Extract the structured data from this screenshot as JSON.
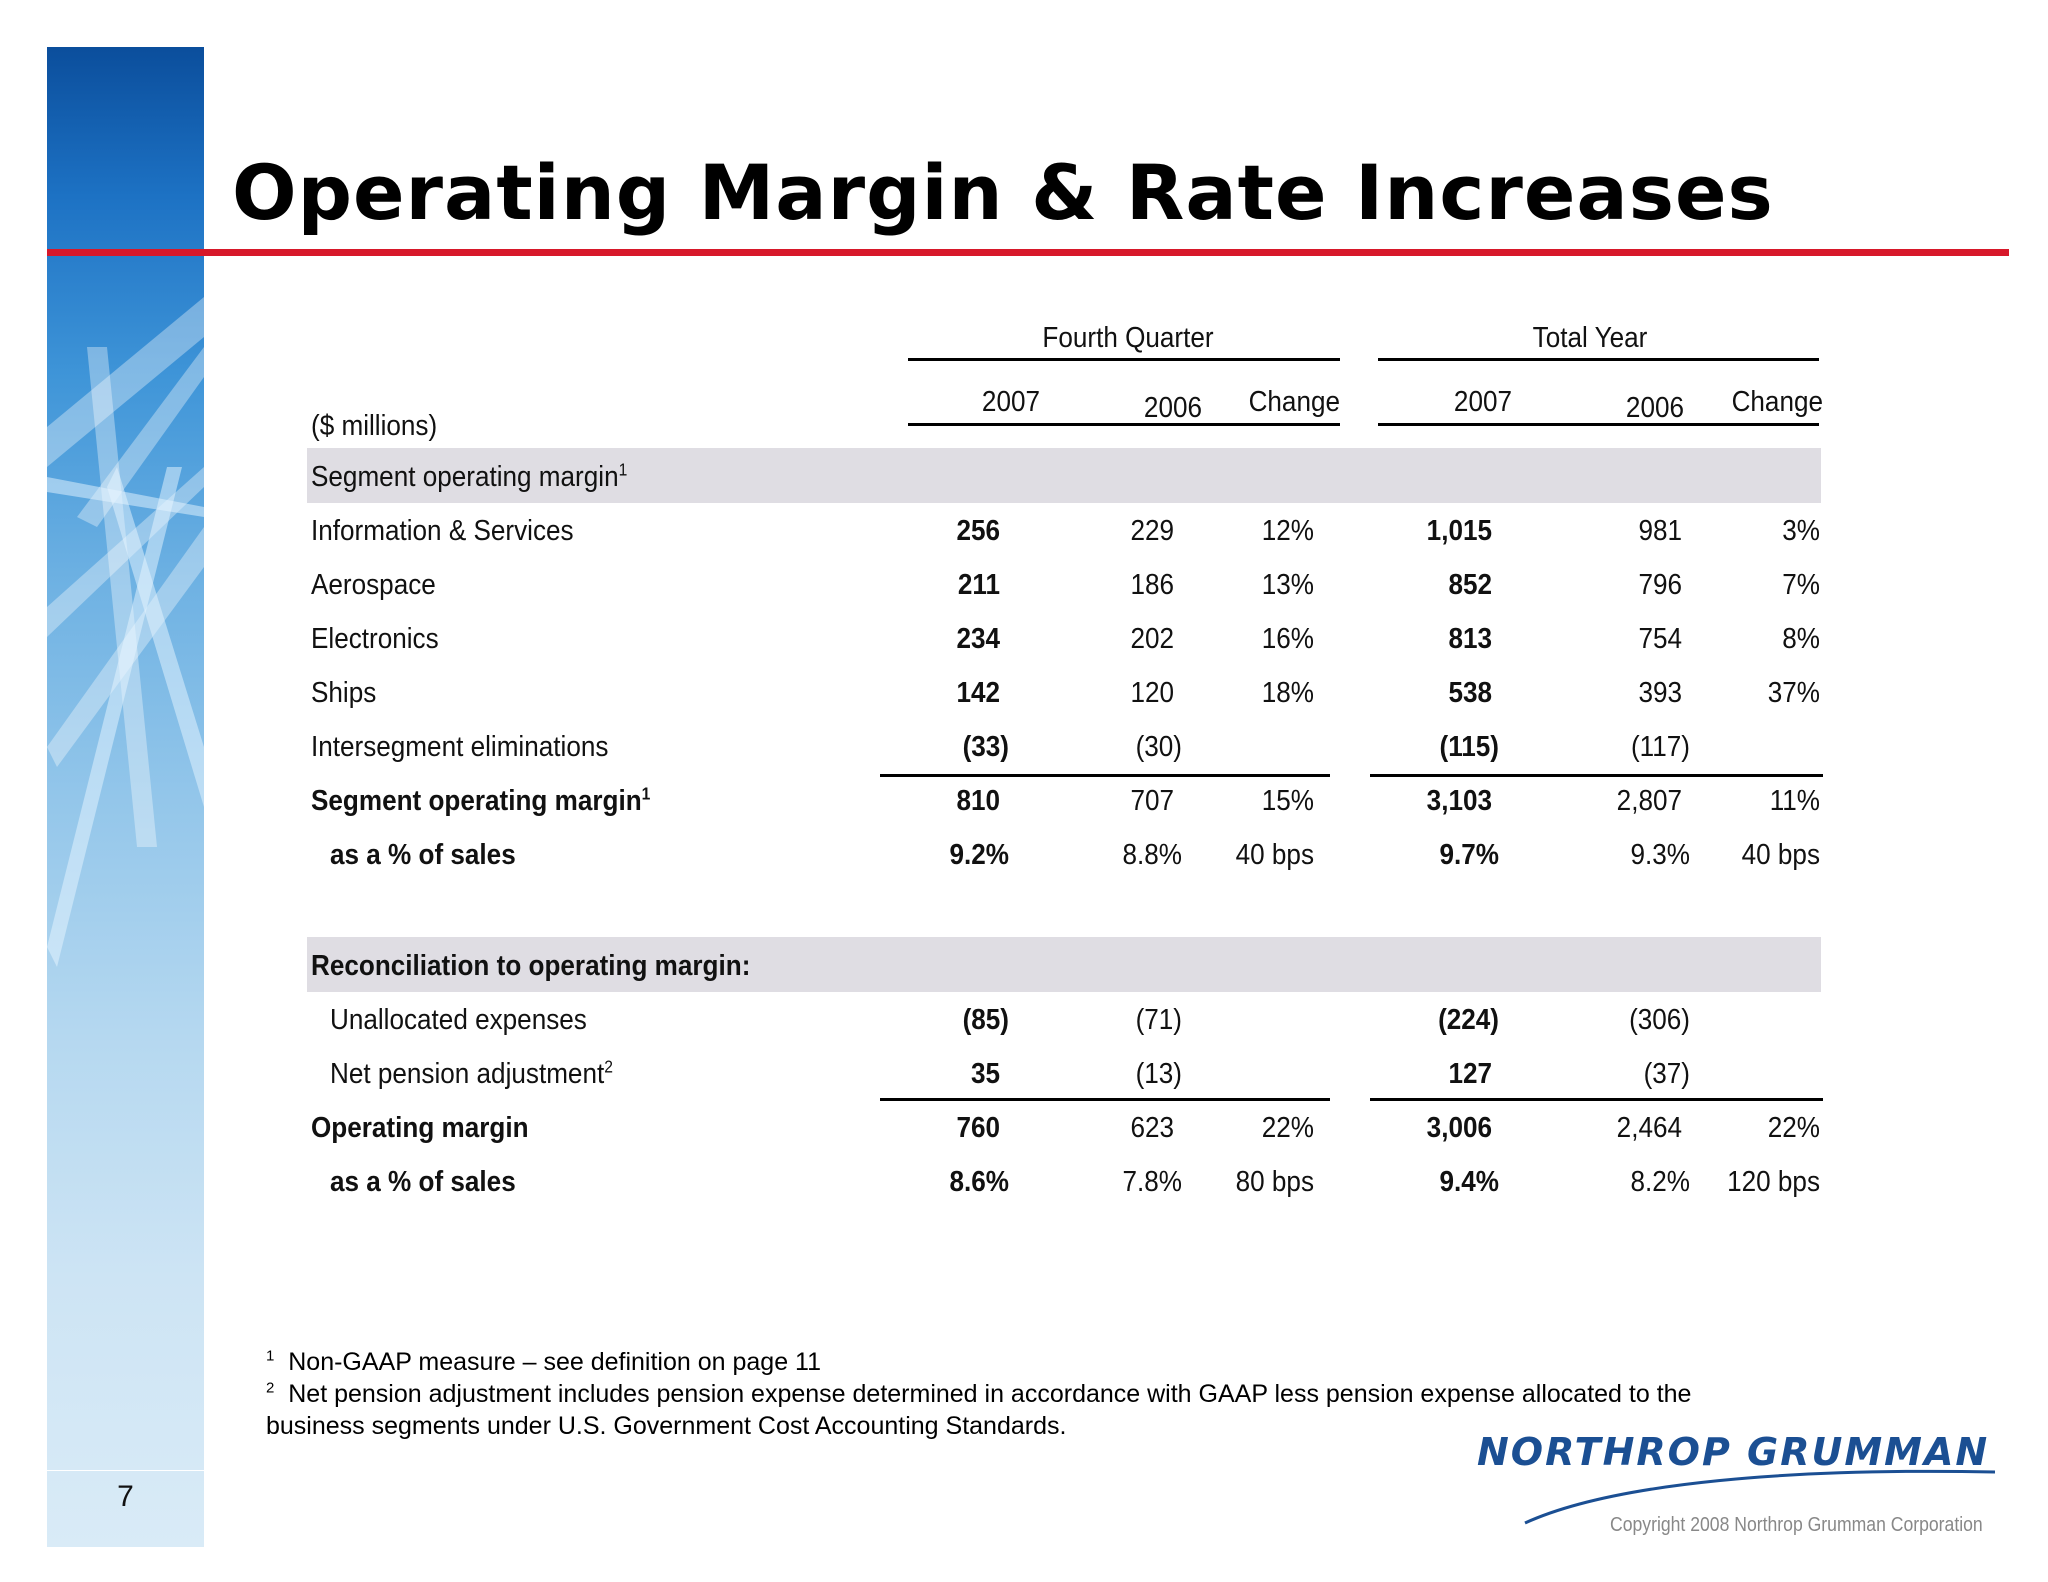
{
  "page_title": "Operating Margin & Rate Increases",
  "page_number": "7",
  "units_label": "($ millions)",
  "group_headers": {
    "fourth_quarter": "Fourth Quarter",
    "total_year": "Total Year"
  },
  "col_headers": [
    "2007",
    "2006",
    "Change",
    "2007",
    "2006",
    "Change"
  ],
  "sections": {
    "segment_header": "Segment operating margin",
    "segment_header_sup": "1",
    "reconciliation_header": "Reconciliation to operating margin:"
  },
  "rows": [
    {
      "label": "Information & Services",
      "values": [
        "256",
        "229",
        "12%",
        "1,015",
        "981",
        "3%"
      ]
    },
    {
      "label": "Aerospace",
      "values": [
        "211",
        "186",
        "13%",
        "852",
        "796",
        "7%"
      ]
    },
    {
      "label": "Electronics",
      "values": [
        "234",
        "202",
        "16%",
        "813",
        "754",
        "8%"
      ]
    },
    {
      "label": "Ships",
      "values": [
        "142",
        "120",
        "18%",
        "538",
        "393",
        "37%"
      ]
    },
    {
      "label": "Intersegment eliminations",
      "values": [
        "(33)",
        "(30)",
        "",
        "(115)",
        "(117)",
        ""
      ]
    },
    {
      "label": "Segment operating margin",
      "sup": "1",
      "values": [
        "810",
        "707",
        "15%",
        "3,103",
        "2,807",
        "11%"
      ]
    },
    {
      "label": "as a % of sales",
      "values": [
        "9.2%",
        "8.8%",
        "40 bps",
        "9.7%",
        "9.3%",
        "40 bps"
      ]
    },
    {
      "label": "Unallocated expenses",
      "values": [
        "(85)",
        "(71)",
        "",
        "(224)",
        "(306)",
        ""
      ]
    },
    {
      "label": "Net pension adjustment",
      "sup": "2",
      "values": [
        "35",
        "(13)",
        "",
        "127",
        "(37)",
        ""
      ]
    },
    {
      "label": "Operating margin",
      "values": [
        "760",
        "623",
        "22%",
        "3,006",
        "2,464",
        "22%"
      ]
    },
    {
      "label": "as a % of sales",
      "values": [
        "8.6%",
        "7.8%",
        "80 bps",
        "9.4%",
        "8.2%",
        "120 bps"
      ]
    }
  ],
  "footnotes": {
    "fn1_num": "1",
    "fn1_text": "Non-GAAP measure – see definition on page 11",
    "fn2_num": "2",
    "fn2_line1": "Net pension adjustment includes pension expense determined in accordance with GAAP less pension expense allocated to the",
    "fn2_line2": "business segments under U.S. Government Cost Accounting Standards."
  },
  "logo_text": "NORTHROP GRUMMAN",
  "copyright": "Copyright 2008 Northrop Grumman Corporation",
  "colors": {
    "accent_red": "#d7182a",
    "logo_blue": "#1b4f93",
    "section_band": "#dfdde3"
  }
}
